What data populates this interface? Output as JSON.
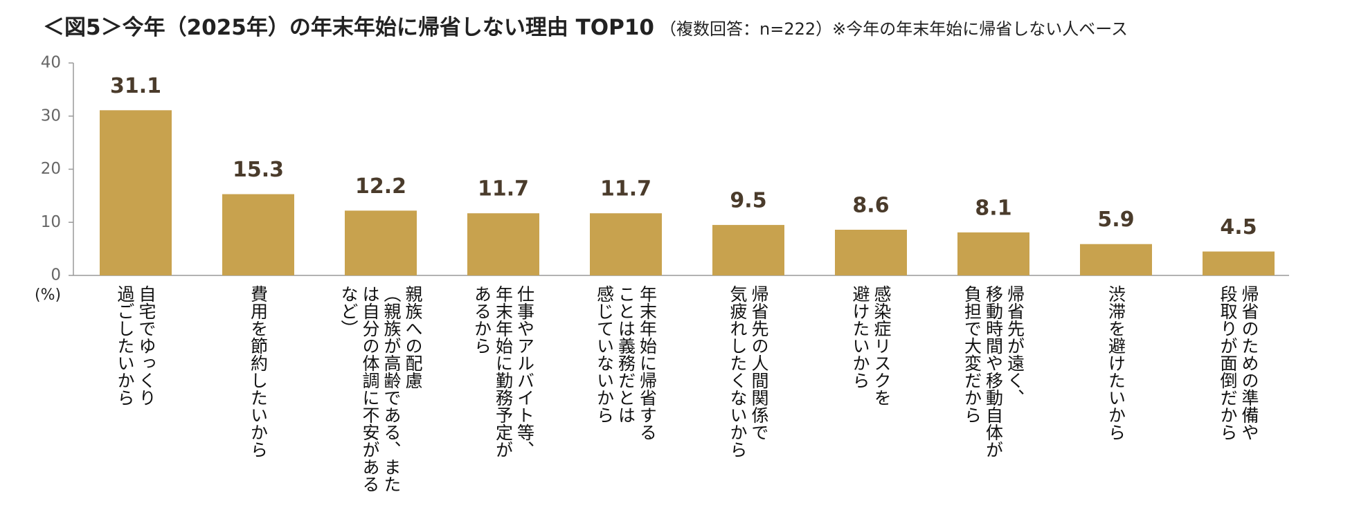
{
  "chart_data": {
    "type": "bar",
    "title": "＜図5＞今年（2025年）の年末年始に帰省しない理由 TOP10",
    "subtitle": "（複数回答：n=222）※今年の年末年始に帰省しない人ベース",
    "y_axis_label": "(%)",
    "categories": [
      "自宅でゆっくり\n過ごしたいから",
      "費用を節約したいから",
      "親族への配慮\n（親族が高齢である、また\nは自分の体調に不安がある\nなど）",
      "仕事やアルバイト等、\n年末年始に勤務予定が\nあるから",
      "年末年始に帰省する\nことは義務だとは\n感じていないから",
      "帰省先の人間関係で\n気疲れしたくないから",
      "感染症リスクを\n避けたいから",
      "帰省先が遠く、\n移動時間や移動自体が\n負担で大変だから",
      "渋滞を避けたいから",
      "帰省のための準備や\n段取りが面倒だから"
    ],
    "values": [
      31.1,
      15.3,
      12.2,
      11.7,
      11.7,
      9.5,
      8.6,
      8.1,
      5.9,
      4.5
    ],
    "color": "#c8a24e",
    "ylim": [
      0,
      40
    ],
    "yticks": [
      0,
      10,
      20,
      30,
      40
    ],
    "grid": false
  }
}
